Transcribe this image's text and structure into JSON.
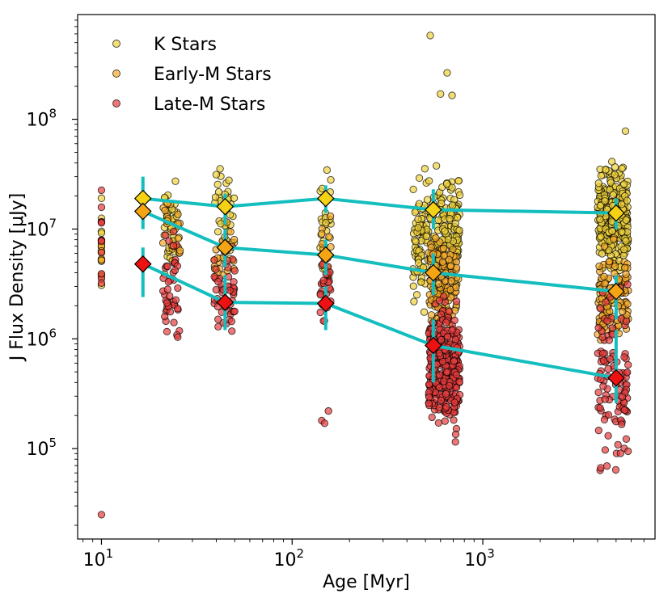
{
  "chart_data": {
    "type": "scatter",
    "xlabel": "Age [Myr]",
    "ylabel": "J Flux Density [μJy]",
    "xscale": "log",
    "yscale": "log",
    "xlim": [
      7.5,
      8000
    ],
    "ylim": [
      15000,
      900000000
    ],
    "x_ticks": [
      {
        "value": 10,
        "base": "10",
        "exp": "1"
      },
      {
        "value": 100,
        "base": "10",
        "exp": "2"
      },
      {
        "value": 1000,
        "base": "10",
        "exp": "3"
      }
    ],
    "y_ticks": [
      {
        "value": 100000,
        "base": "10",
        "exp": "5"
      },
      {
        "value": 1000000,
        "base": "10",
        "exp": "6"
      },
      {
        "value": 10000000,
        "base": "10",
        "exp": "7"
      },
      {
        "value": 100000000,
        "base": "10",
        "exp": "8"
      }
    ],
    "legend_position": "top-left",
    "colors": {
      "k_stars": "#f0d23c",
      "early_m_stars": "#f5aa28",
      "late_m_stars": "#e83c3c",
      "median_line": "#14bebe",
      "k_diamond": "#f5d214",
      "early_m_diamond": "#f5a514",
      "late_m_diamond": "#ee1111"
    },
    "series": [
      {
        "name": "K Stars",
        "key": "k_stars",
        "groups": [
          {
            "age": 10,
            "x_spread": [
              10,
              10
            ],
            "y_range": [
              900000,
              35000000
            ],
            "n": 10,
            "outliers": []
          },
          {
            "age": 23,
            "x_spread": [
              21,
              26
            ],
            "y_range": [
              2800000,
              38000000
            ],
            "n": 35,
            "outliers": []
          },
          {
            "age": 45,
            "x_spread": [
              39,
              50
            ],
            "y_range": [
              3500000,
              56000000
            ],
            "n": 35,
            "outliers": []
          },
          {
            "age": 150,
            "x_spread": [
              140,
              160
            ],
            "y_range": [
              2500000,
              55000000
            ],
            "n": 25,
            "outliers": []
          },
          {
            "age": 600,
            "x_spread": [
              430,
              760
            ],
            "y_range": [
              1200000,
              55000000
            ],
            "n": 260,
            "outliers": [
              [
                530,
                580000000
              ],
              [
                650,
                265000000
              ],
              [
                600,
                170000000
              ],
              [
                690,
                165000000
              ]
            ]
          },
          {
            "age": 5000,
            "x_spread": [
              4000,
              5800
            ],
            "y_range": [
              3000000,
              50000000
            ],
            "n": 300,
            "outliers": [
              [
                5600,
                78000000
              ]
            ]
          }
        ]
      },
      {
        "name": "Early-M Stars",
        "key": "early_m_stars",
        "groups": [
          {
            "age": 10,
            "x_spread": [
              10,
              10
            ],
            "y_range": [
              1500000,
              30000000
            ],
            "n": 6,
            "outliers": []
          },
          {
            "age": 23,
            "x_spread": [
              21,
              26
            ],
            "y_range": [
              2500000,
              25000000
            ],
            "n": 25,
            "outliers": []
          },
          {
            "age": 45,
            "x_spread": [
              39,
              50
            ],
            "y_range": [
              2000000,
              20000000
            ],
            "n": 25,
            "outliers": []
          },
          {
            "age": 150,
            "x_spread": [
              140,
              160
            ],
            "y_range": [
              1500000,
              20000000
            ],
            "n": 15,
            "outliers": []
          },
          {
            "age": 600,
            "x_spread": [
              520,
              740
            ],
            "y_range": [
              900000,
              12000000
            ],
            "n": 120,
            "outliers": []
          },
          {
            "age": 5000,
            "x_spread": [
              4000,
              5800
            ],
            "y_range": [
              600000,
              10000000
            ],
            "n": 120,
            "outliers": []
          }
        ]
      },
      {
        "name": "Late-M Stars",
        "key": "late_m_stars",
        "groups": [
          {
            "age": 10,
            "x_spread": [
              10,
              10
            ],
            "y_range": [
              2200000,
              32000000
            ],
            "n": 12,
            "outliers": [
              [
                10,
                25000
              ]
            ]
          },
          {
            "age": 23,
            "x_spread": [
              21,
              26
            ],
            "y_range": [
              550000,
              14000000
            ],
            "n": 45,
            "outliers": []
          },
          {
            "age": 45,
            "x_spread": [
              39,
              50
            ],
            "y_range": [
              700000,
              12000000
            ],
            "n": 50,
            "outliers": []
          },
          {
            "age": 150,
            "x_spread": [
              140,
              160
            ],
            "y_range": [
              750000,
              13000000
            ],
            "n": 30,
            "outliers": [
              [
                143,
                180000
              ],
              [
                148,
                170000
              ],
              [
                155,
                220000
              ]
            ]
          },
          {
            "age": 600,
            "x_spread": [
              520,
              760
            ],
            "y_range": [
              90000,
              3500000
            ],
            "n": 320,
            "outliers": []
          },
          {
            "age": 5000,
            "x_spread": [
              4000,
              5800
            ],
            "y_range": [
              33000,
              5000000
            ],
            "n": 110,
            "outliers": []
          }
        ]
      }
    ],
    "medians": [
      {
        "name": "K median",
        "key": "k_diamond",
        "points": [
          {
            "x": 16.5,
            "y": 19000000,
            "err": [
              13000000,
              30000000
            ]
          },
          {
            "x": 44.5,
            "y": 16000000,
            "err": [
              11000000,
              21000000
            ]
          },
          {
            "x": 150,
            "y": 19000000,
            "err": [
              14000000,
              25000000
            ]
          },
          {
            "x": 550,
            "y": 15000000,
            "err": [
              10000000,
              23000000
            ]
          },
          {
            "x": 5000,
            "y": 14000000,
            "err": [
              10000000,
              19000000
            ]
          }
        ]
      },
      {
        "name": "Early-M median",
        "key": "early_m_diamond",
        "points": [
          {
            "x": 16.5,
            "y": 14500000,
            "err": [
              10000000,
              20000000
            ]
          },
          {
            "x": 44.5,
            "y": 6800000,
            "err": [
              4500000,
              10000000
            ]
          },
          {
            "x": 150,
            "y": 5800000,
            "err": [
              3800000,
              8000000
            ]
          },
          {
            "x": 550,
            "y": 4000000,
            "err": [
              2500000,
              6000000
            ]
          },
          {
            "x": 5000,
            "y": 2700000,
            "err": [
              1500000,
              3800000
            ]
          }
        ]
      },
      {
        "name": "Late-M median",
        "key": "late_m_diamond",
        "points": [
          {
            "x": 16.5,
            "y": 4800000,
            "err": [
              2400000,
              6800000
            ]
          },
          {
            "x": 44.5,
            "y": 2150000,
            "err": [
              1200000,
              3800000
            ]
          },
          {
            "x": 150,
            "y": 2100000,
            "err": [
              1200000,
              3000000
            ]
          },
          {
            "x": 550,
            "y": 870000,
            "err": [
              400000,
              1500000
            ]
          },
          {
            "x": 5000,
            "y": 440000,
            "err": [
              260000,
              1200000
            ]
          }
        ]
      }
    ],
    "legend": [
      {
        "label": "K Stars",
        "key": "k_stars"
      },
      {
        "label": "Early-M Stars",
        "key": "early_m_stars"
      },
      {
        "label": "Late-M Stars",
        "key": "late_m_stars"
      }
    ]
  }
}
